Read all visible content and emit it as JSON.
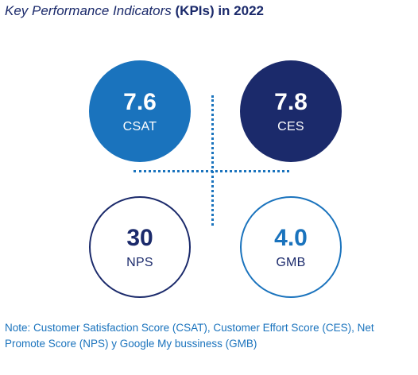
{
  "header": {
    "title_italic": "Key Performance Indicators",
    "title_bold": "(KPIs) in 2022"
  },
  "kpis": [
    {
      "value": "7.6",
      "label": "CSAT"
    },
    {
      "value": "7.8",
      "label": "CES"
    },
    {
      "value": "30",
      "label": "NPS"
    },
    {
      "value": "4.0",
      "label": "GMB"
    }
  ],
  "colors": {
    "navy": "#1b2a6b",
    "blue": "#1a73bd",
    "background": "#ffffff"
  },
  "note": "Note: Customer Satisfaction Score (CSAT), Customer Effort Score (CES), Net Promote Score (NPS) y Google My bussiness (GMB)"
}
